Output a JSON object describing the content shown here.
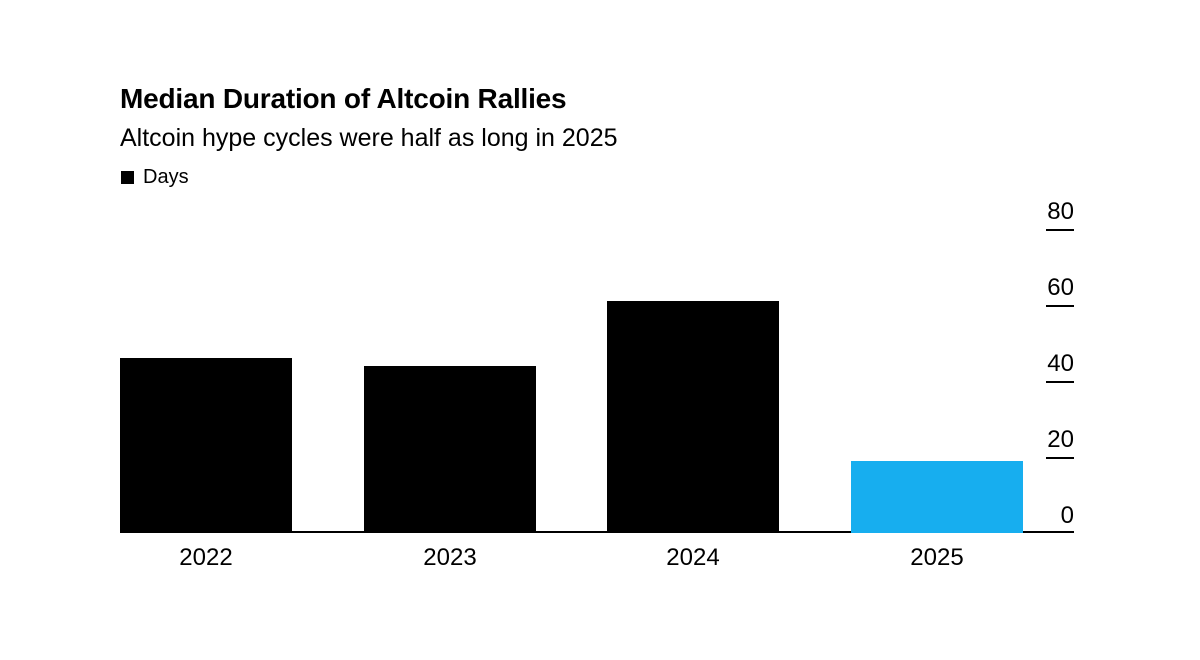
{
  "header": {
    "title": "Median Duration of Altcoin Rallies",
    "subtitle": "Altcoin hype cycles were half as long in 2025",
    "legend": {
      "label": "Days",
      "swatch_color": "#000000"
    }
  },
  "chart_data": {
    "type": "bar",
    "title": "Median Duration of Altcoin Rallies",
    "subtitle": "Altcoin hype cycles were half as long in 2025",
    "series_name": "Days",
    "categories": [
      "2022",
      "2023",
      "2024",
      "2025"
    ],
    "values": [
      46,
      44,
      61,
      19
    ],
    "ylim": [
      0,
      80
    ],
    "yticks": [
      80,
      60,
      40,
      20,
      0
    ],
    "xlabel": "",
    "ylabel": "",
    "grid": false,
    "axis_side": "right",
    "legend_position": "top-left",
    "highlight_index": 3,
    "colors": {
      "default_bar": "#000000",
      "highlight_bar": "#17AEEF",
      "axis": "#000000",
      "background": "#ffffff"
    }
  }
}
